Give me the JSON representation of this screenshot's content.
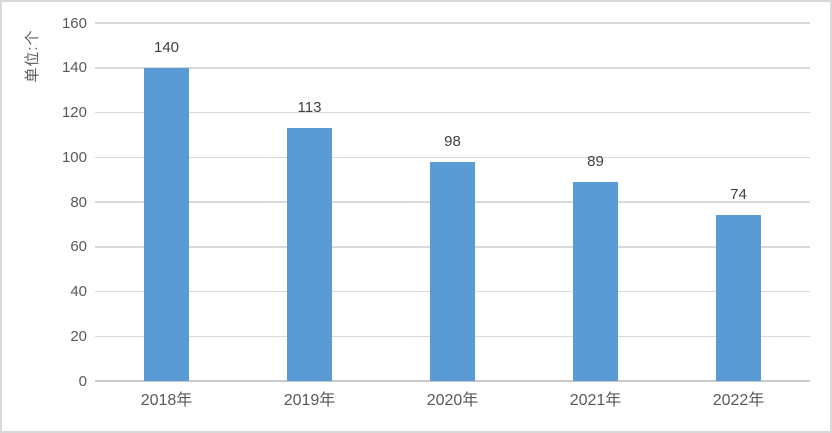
{
  "chart_data": {
    "type": "bar",
    "categories": [
      "2018年",
      "2019年",
      "2020年",
      "2021年",
      "2022年"
    ],
    "values": [
      140,
      113,
      98,
      89,
      74
    ],
    "title": "",
    "xlabel": "",
    "ylabel": "单位:个",
    "ylim": [
      0,
      160
    ],
    "yticks": [
      0,
      20,
      40,
      60,
      80,
      100,
      120,
      140,
      160
    ],
    "grid": true,
    "legend": false,
    "data_labels": true
  },
  "colors": {
    "bar": "#5b9bd5",
    "gridline": "#d9d9d9",
    "axis_line": "#c9c9c9",
    "tick_text": "#595959",
    "value_text": "#404040",
    "category_text": "#595959",
    "border": "#d9d9d9",
    "background": "#ffffff"
  }
}
